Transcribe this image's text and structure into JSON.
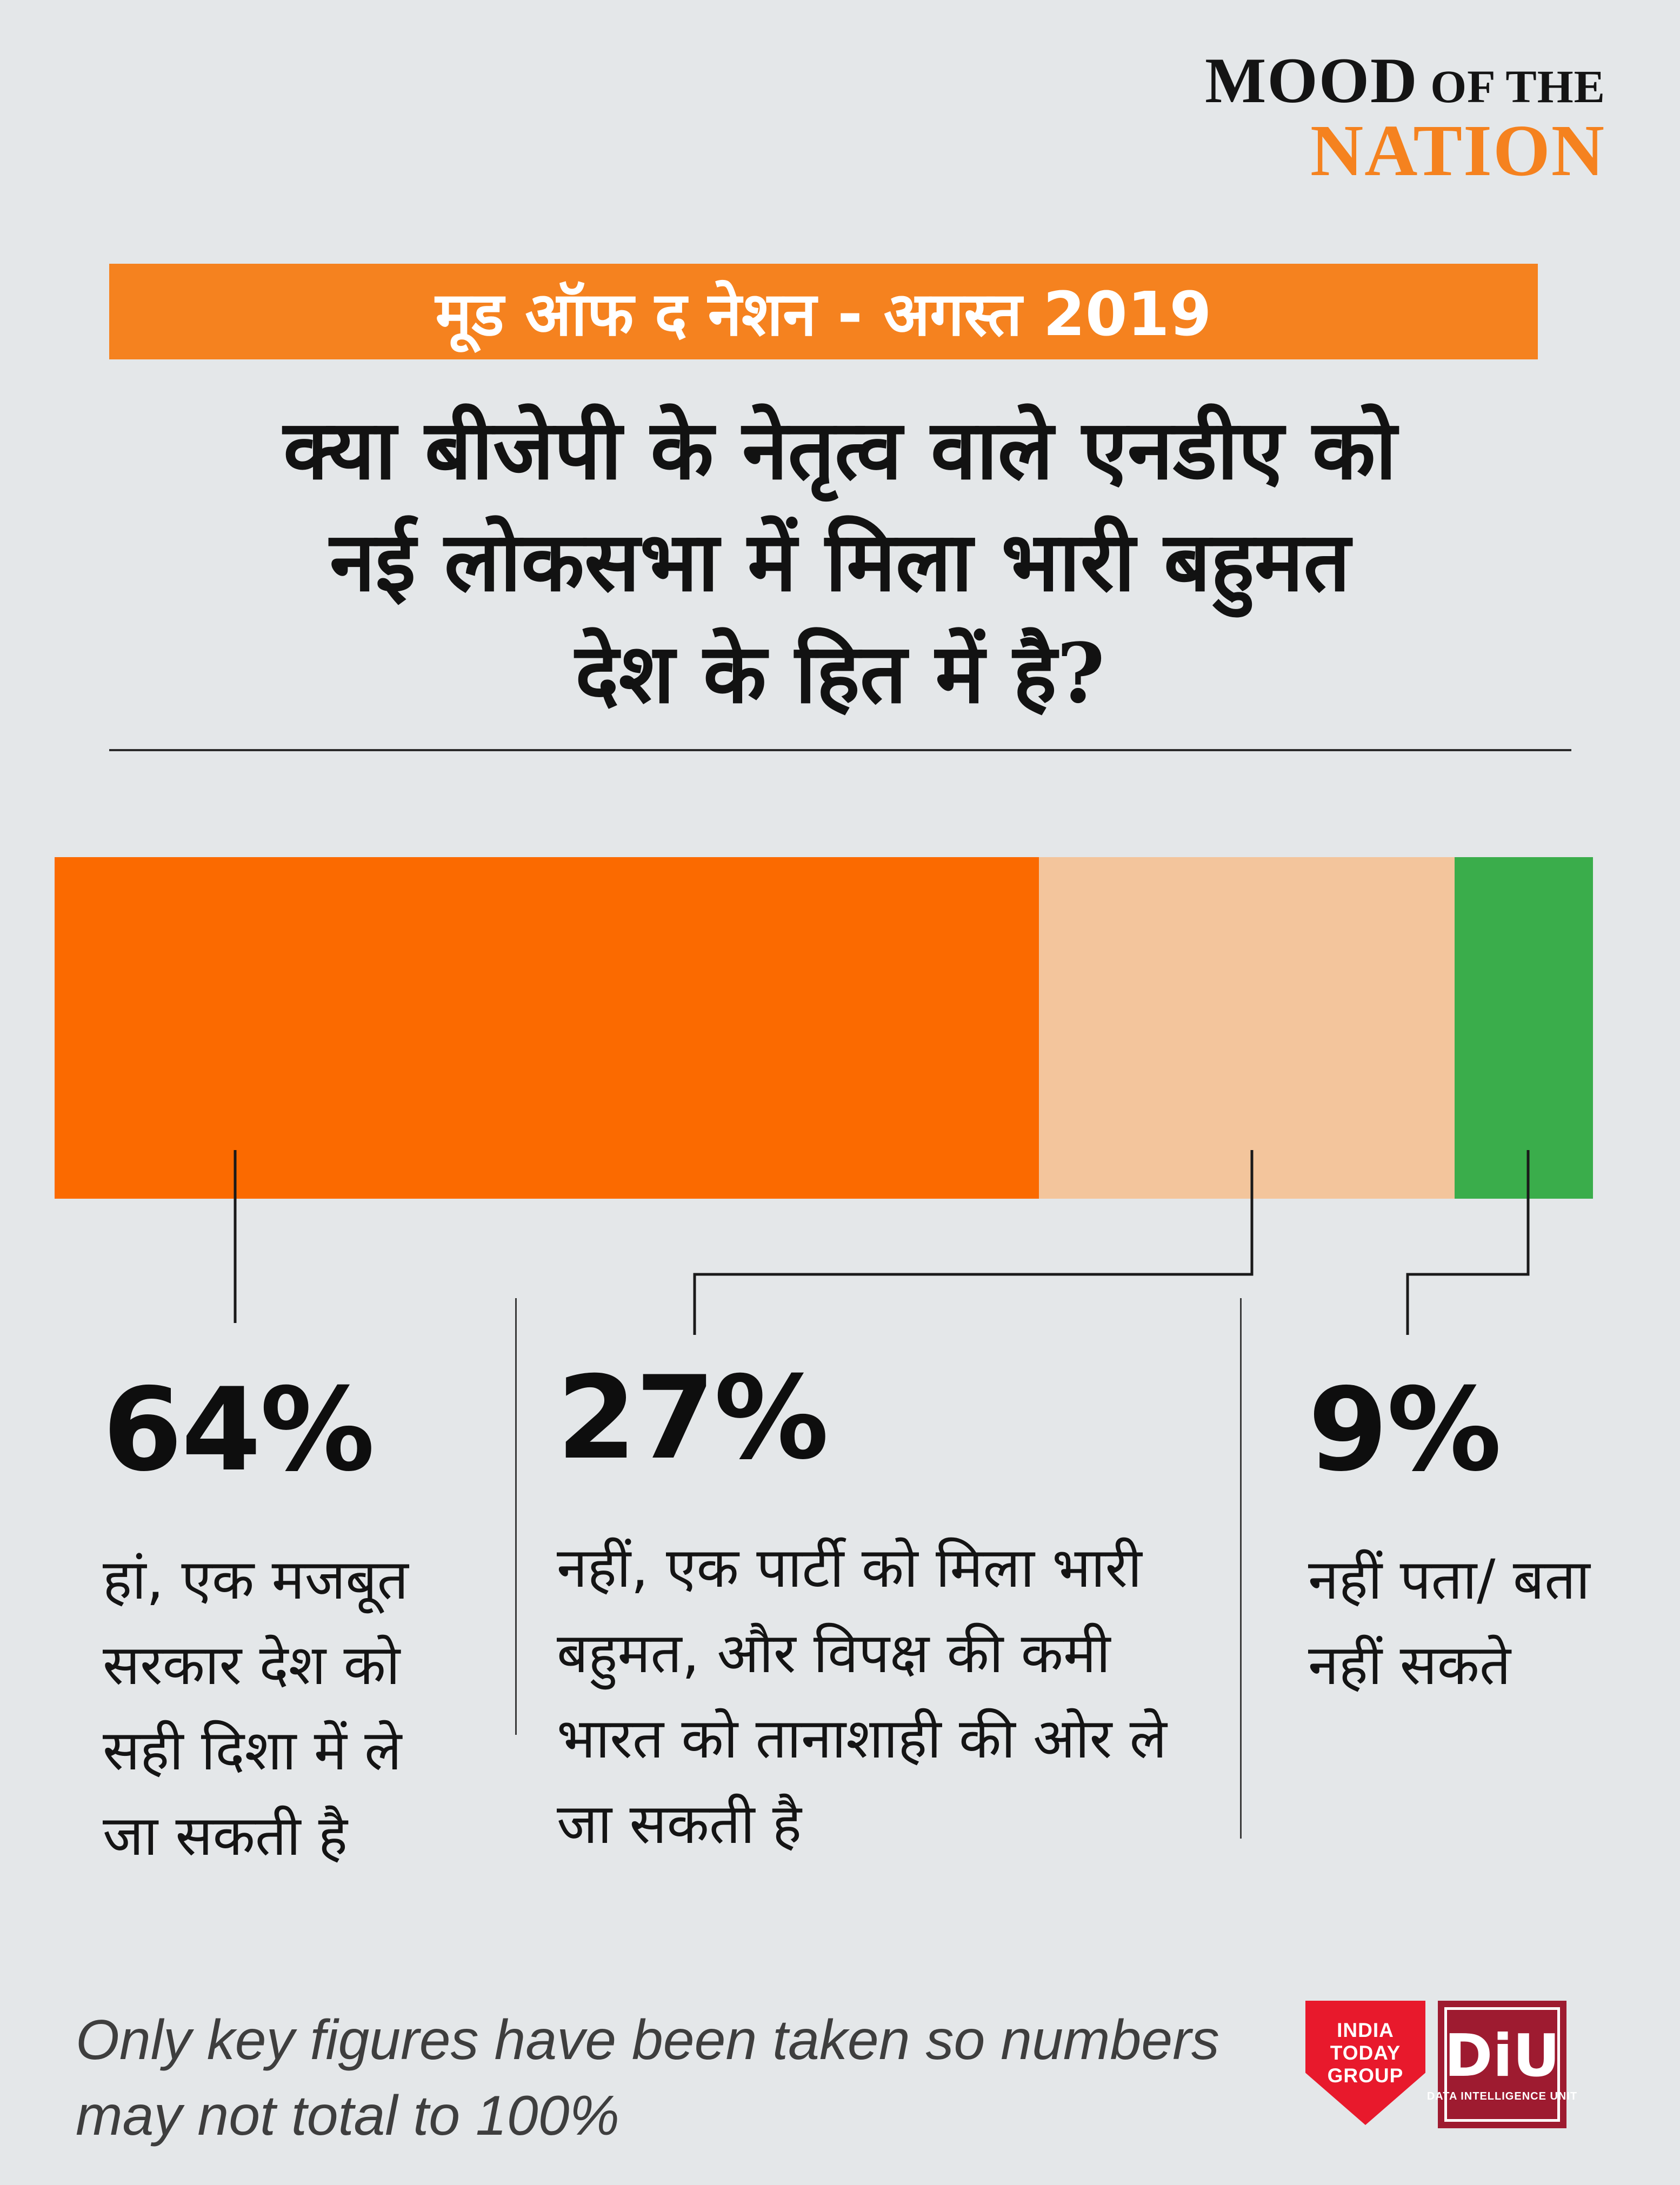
{
  "brand": {
    "mood": "MOOD",
    "of_the": " OF THE",
    "nation": "NATION"
  },
  "banner": {
    "text": "मूड ऑफ द नेशन - अगस्त 2019",
    "background": "#f5821f"
  },
  "question": {
    "line1": "क्या बीजेपी के नेतृत्व वाले एनडीए को",
    "line2": "नई लोकसभा में मिला भारी बहुमत",
    "line3": "देश के हित में है?"
  },
  "chart_data": {
    "type": "bar",
    "subtype": "horizontal-stacked",
    "title": "क्या बीजेपी के नेतृत्व वाले एनडीए को नई लोकसभा में मिला भारी बहुमत देश के हित में है?",
    "categories": [
      "हां, एक मजबूत सरकार देश को सही दिशा में ले जा सकती है",
      "नहीं, एक पार्टी को मिला भारी बहुमत, और विपक्ष की कमी भारत को तानाशाही की ओर ले जा सकती है",
      "नहीं पता/ बता नहीं सकते"
    ],
    "values": [
      64,
      27,
      9
    ],
    "unit": "%",
    "data_labels": [
      "64%",
      "27%",
      "9%"
    ],
    "colors": [
      "#fb6a00",
      "#f3c59c",
      "#3aad4b"
    ],
    "xlim": [
      0,
      100
    ],
    "legend": false,
    "grid": false
  },
  "answers": [
    {
      "percent": "64%",
      "label": "हां, एक मजबूत सरकार देश को सही दिशा में ले जा सकती है"
    },
    {
      "percent": "27%",
      "label": "नहीं, एक पार्टी को मिला भारी बहुमत, और विपक्ष की कमी भारत को तानाशाही की ओर ले जा सकती है"
    },
    {
      "percent": "9%",
      "label": "नहीं पता/ बता नहीं सकते"
    }
  ],
  "footnote": "Only key figures have been taken so numbers may not total to 100%",
  "logos": {
    "india_today": {
      "line1": "INDIA",
      "line2": "TODAY",
      "line3": "GROUP",
      "color": "#e8192c"
    },
    "diu": {
      "name": "DiU",
      "sub": "DATA INTELLIGENCE UNIT",
      "color": "#9e1b30"
    }
  }
}
